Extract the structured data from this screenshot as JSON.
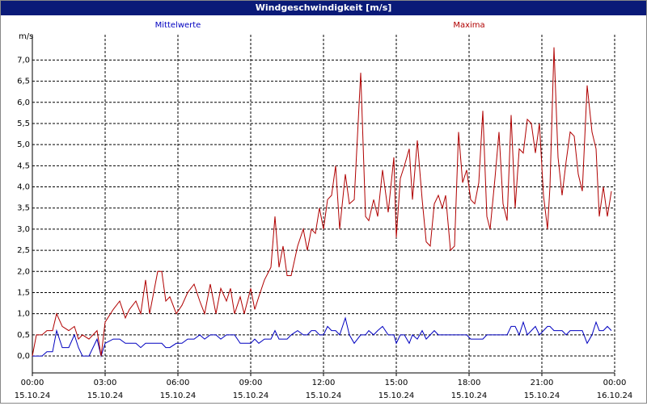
{
  "chart_data": {
    "type": "line",
    "title": "Windgeschwindigkeit [m/s]",
    "ylabel": "m/s",
    "grid": true,
    "ylim": [
      -0.4,
      7.6
    ],
    "yticks": [
      {
        "value": 0,
        "label": "0,0"
      },
      {
        "value": 0.5,
        "label": "0,5"
      },
      {
        "value": 1,
        "label": "1,0"
      },
      {
        "value": 1.5,
        "label": "1,5"
      },
      {
        "value": 2,
        "label": "2,0"
      },
      {
        "value": 2.5,
        "label": "2,5"
      },
      {
        "value": 3,
        "label": "3,0"
      },
      {
        "value": 3.5,
        "label": "3,5"
      },
      {
        "value": 4,
        "label": "4,0"
      },
      {
        "value": 4.5,
        "label": "4,5"
      },
      {
        "value": 5,
        "label": "5,0"
      },
      {
        "value": 5.5,
        "label": "5,5"
      },
      {
        "value": 6,
        "label": "6,0"
      },
      {
        "value": 6.5,
        "label": "6,5"
      },
      {
        "value": 7,
        "label": "7,0"
      }
    ],
    "xlim": [
      0,
      1440
    ],
    "xticks": [
      {
        "value": 0,
        "label": "00:00"
      },
      {
        "value": 180,
        "label": "03:00"
      },
      {
        "value": 360,
        "label": "06:00"
      },
      {
        "value": 540,
        "label": "09:00"
      },
      {
        "value": 720,
        "label": "12:00"
      },
      {
        "value": 900,
        "label": "15:00"
      },
      {
        "value": 1080,
        "label": "18:00"
      },
      {
        "value": 1260,
        "label": "21:00"
      },
      {
        "value": 1440,
        "label": "00:00"
      }
    ],
    "xtick_dates": [
      "15.10.24",
      "15.10.24",
      "15.10.24",
      "15.10.24",
      "15.10.24",
      "15.10.24",
      "15.10.24",
      "15.10.24",
      "16.10.24"
    ],
    "x": [
      0,
      10,
      24,
      36,
      50,
      60,
      74,
      90,
      104,
      114,
      124,
      140,
      160,
      170,
      180,
      200,
      216,
      230,
      240,
      256,
      268,
      280,
      290,
      310,
      320,
      330,
      340,
      356,
      370,
      384,
      400,
      414,
      426,
      440,
      454,
      466,
      480,
      490,
      500,
      514,
      524,
      540,
      550,
      560,
      574,
      590,
      600,
      610,
      620,
      630,
      640,
      656,
      670,
      680,
      690,
      700,
      710,
      720,
      730,
      740,
      750,
      760,
      774,
      784,
      796,
      812,
      824,
      832,
      844,
      854,
      866,
      880,
      894,
      900,
      910,
      920,
      932,
      940,
      952,
      964,
      974,
      984,
      994,
      1004,
      1014,
      1022,
      1034,
      1044,
      1054,
      1064,
      1074,
      1084,
      1094,
      1104,
      1114,
      1124,
      1132,
      1144,
      1154,
      1164,
      1174,
      1184,
      1194,
      1204,
      1214,
      1224,
      1234,
      1244,
      1254,
      1264,
      1274,
      1280,
      1290,
      1300,
      1310,
      1320,
      1330,
      1340,
      1350,
      1360,
      1372,
      1384,
      1394,
      1402,
      1412,
      1422,
      1432
    ],
    "series": [
      {
        "name": "Mittelwerte",
        "color": "#0000c0",
        "legend_pos": 0.25,
        "values": [
          0,
          0,
          0,
          0.1,
          0.1,
          0.6,
          0.2,
          0.2,
          0.5,
          0.2,
          0,
          0,
          0.4,
          0,
          0.3,
          0.4,
          0.4,
          0.3,
          0.3,
          0.3,
          0.2,
          0.3,
          0.3,
          0.3,
          0.3,
          0.2,
          0.2,
          0.3,
          0.3,
          0.4,
          0.4,
          0.5,
          0.4,
          0.5,
          0.5,
          0.4,
          0.5,
          0.5,
          0.5,
          0.3,
          0.3,
          0.3,
          0.4,
          0.3,
          0.4,
          0.4,
          0.6,
          0.4,
          0.4,
          0.4,
          0.5,
          0.6,
          0.5,
          0.5,
          0.6,
          0.6,
          0.5,
          0.5,
          0.7,
          0.6,
          0.6,
          0.5,
          0.9,
          0.5,
          0.3,
          0.5,
          0.5,
          0.6,
          0.5,
          0.6,
          0.7,
          0.5,
          0.5,
          0.3,
          0.5,
          0.5,
          0.3,
          0.5,
          0.4,
          0.6,
          0.4,
          0.5,
          0.6,
          0.5,
          0.5,
          0.5,
          0.5,
          0.5,
          0.5,
          0.5,
          0.5,
          0.4,
          0.4,
          0.4,
          0.4,
          0.5,
          0.5,
          0.5,
          0.5,
          0.5,
          0.5,
          0.7,
          0.7,
          0.5,
          0.8,
          0.5,
          0.6,
          0.7,
          0.5,
          0.6,
          0.7,
          0.7,
          0.6,
          0.6,
          0.6,
          0.5,
          0.6,
          0.6,
          0.6,
          0.6,
          0.3,
          0.5,
          0.8,
          0.6,
          0.6,
          0.7,
          0.6
        ]
      },
      {
        "name": "Maxima",
        "color": "#b00000",
        "legend_pos": 0.75,
        "values": [
          0,
          0.5,
          0.5,
          0.6,
          0.6,
          1.0,
          0.7,
          0.6,
          0.7,
          0.4,
          0.5,
          0.4,
          0.6,
          0,
          0.8,
          1.1,
          1.3,
          0.9,
          1.1,
          1.3,
          1.0,
          1.8,
          1.0,
          2.0,
          2.0,
          1.3,
          1.4,
          1.0,
          1.2,
          1.5,
          1.7,
          1.3,
          1.0,
          1.7,
          1.0,
          1.6,
          1.3,
          1.6,
          1.0,
          1.4,
          1.0,
          1.6,
          1.1,
          1.4,
          1.8,
          2.1,
          3.3,
          2.1,
          2.6,
          1.9,
          1.9,
          2.6,
          3.0,
          2.5,
          3.0,
          2.9,
          3.5,
          3.0,
          3.7,
          3.8,
          4.5,
          3.0,
          4.3,
          3.6,
          3.7,
          6.7,
          3.3,
          3.2,
          3.7,
          3.3,
          4.4,
          3.4,
          4.7,
          2.8,
          4.2,
          4.5,
          4.9,
          3.7,
          5.1,
          3.7,
          2.7,
          2.6,
          3.6,
          3.8,
          3.5,
          3.8,
          2.5,
          2.6,
          5.3,
          4.1,
          4.4,
          3.7,
          3.6,
          4.1,
          5.8,
          3.3,
          3.0,
          4.2,
          5.3,
          3.6,
          3.2,
          5.7,
          3.5,
          4.9,
          4.8,
          5.6,
          5.5,
          4.8,
          5.5,
          3.8,
          3.0,
          4.0,
          7.3,
          4.7,
          3.8,
          4.6,
          5.3,
          5.2,
          4.3,
          3.9,
          6.4,
          5.3,
          4.9,
          3.3,
          4.0,
          3.3,
          3.9
        ]
      }
    ]
  }
}
